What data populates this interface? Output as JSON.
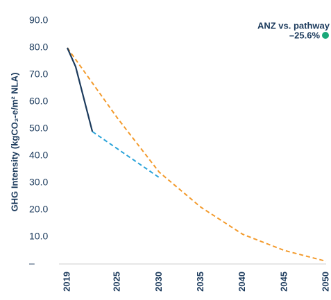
{
  "chart_data": {
    "type": "line",
    "ylabel": "GHG Intensity (kgCO₂-e/m² NLA)",
    "annotation": {
      "title": "ANZ vs. pathway",
      "value": "–25.6%",
      "color": "#1aa879"
    },
    "xlim": [
      2019,
      2050
    ],
    "xticks": [
      2019,
      2025,
      2030,
      2035,
      2040,
      2045,
      2050
    ],
    "ylim": [
      0,
      90
    ],
    "yticks": [
      {
        "value": 0,
        "label": "–"
      },
      {
        "value": 10,
        "label": "10.0"
      },
      {
        "value": 20,
        "label": "20.0"
      },
      {
        "value": 30,
        "label": "30.0"
      },
      {
        "value": 40,
        "label": "40.0"
      },
      {
        "value": 50,
        "label": "50.0"
      },
      {
        "value": 60,
        "label": "60.0"
      },
      {
        "value": 70,
        "label": "70.0"
      },
      {
        "value": 80,
        "label": "80.0"
      },
      {
        "value": 90,
        "label": "90.0"
      }
    ],
    "grid": false,
    "series": [
      {
        "color": "#f39a2b",
        "dashed": true,
        "x": [
          2019,
          2025,
          2030,
          2035,
          2040,
          2045,
          2050
        ],
        "values": [
          80,
          54,
          34,
          21,
          11,
          5,
          1
        ]
      },
      {
        "color": "#29a3d9",
        "dashed": true,
        "x": [
          2022,
          2030
        ],
        "values": [
          49,
          32
        ]
      },
      {
        "color": "#1b3a5c",
        "dashed": false,
        "x": [
          2019,
          2020,
          2022
        ],
        "values": [
          80,
          73,
          49
        ]
      }
    ]
  }
}
